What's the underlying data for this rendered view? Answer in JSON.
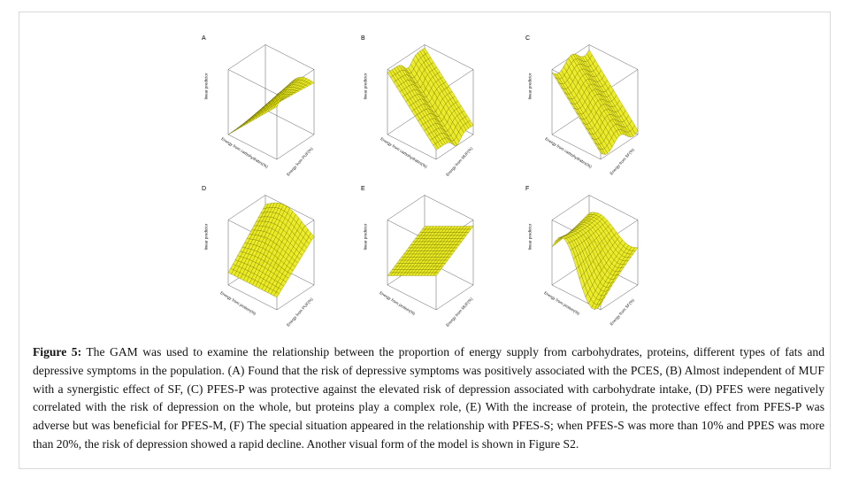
{
  "panels": [
    {
      "letter": "A",
      "y_label": "linear predictor",
      "x1_label": "Energy from carbohydrates(%)",
      "x2_label": "Energy from PUF(%)"
    },
    {
      "letter": "B",
      "y_label": "linear predictor",
      "x1_label": "Energy from carbohydrates(%)",
      "x2_label": "Energy from MUF(%)"
    },
    {
      "letter": "C",
      "y_label": "linear predictor",
      "x1_label": "Energy from carbohydrates(%)",
      "x2_label": "Energy from SF(%)"
    },
    {
      "letter": "D",
      "y_label": "linear predictor",
      "x1_label": "Energy from protein(%)",
      "x2_label": "Energy from PUF(%)"
    },
    {
      "letter": "E",
      "y_label": "linear predictor",
      "x1_label": "Energy from protein(%)",
      "x2_label": "Energy from MUF(%)"
    },
    {
      "letter": "F",
      "y_label": "linear predictor",
      "x1_label": "Energy from protein(%)",
      "x2_label": "Energy from SF(%)"
    }
  ],
  "caption": {
    "label": "Figure 5:",
    "text": " The GAM was used to examine the relationship between the proportion of energy supply from carbohydrates, proteins, different types of fats and depressive symptoms in the population. (A) Found that the risk of depressive symptoms was positively associated with the PCES, (B) Almost independent of MUF with a synergistic effect of SF, (C) PFES-P was protective against the elevated risk of depression associated with carbohydrate intake, (D) PFES were negatively correlated with the risk of depression on the whole, but proteins play a complex role, (E) With the increase of protein, the protective effect from PFES-P was adverse but was beneficial for PFES-M, (F)  The special situation appeared in the relationship with PFES-S; when PFES-S was more than 10% and PPES was more than 20%, the risk of depression showed a rapid decline. Another visual form of the model is shown in Figure S2."
  },
  "colors": {
    "surface": "#e8e800",
    "mesh": "#5a5a00",
    "box": "#333333"
  }
}
